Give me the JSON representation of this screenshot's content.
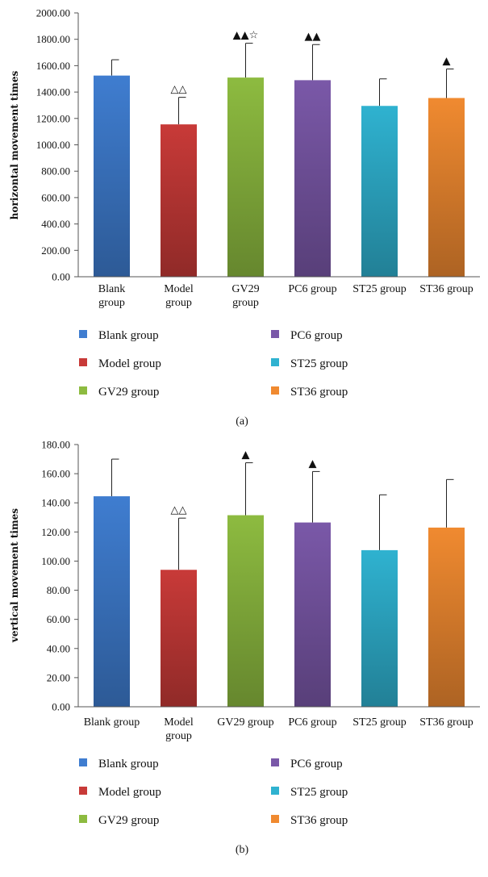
{
  "colors": {
    "Blank group": "#3f7dd0",
    "Model group": "#c83a38",
    "GV29 group": "#8dbb40",
    "PC6 group": "#7a58a8",
    "ST25 group": "#2fb2d0",
    "ST36 group": "#f08a30"
  },
  "chart_data": [
    {
      "type": "bar",
      "caption": "(a)",
      "ylabel": "horizontal movement times",
      "ylim": [
        0,
        2000
      ],
      "ytick_labels": [
        "0.00",
        "200.00",
        "400.00",
        "600.00",
        "800.00",
        "1000.00",
        "1200.00",
        "1400.00",
        "1600.00",
        "1800.00",
        "2000.00"
      ],
      "ytick_values": [
        0,
        200,
        400,
        600,
        800,
        1000,
        1200,
        1400,
        1600,
        1800,
        2000
      ],
      "categories": [
        {
          "name": "Blank group",
          "lines": [
            "Blank",
            "group"
          ]
        },
        {
          "name": "Model group",
          "lines": [
            "Model",
            "group"
          ]
        },
        {
          "name": "GV29 group",
          "lines": [
            "GV29",
            "group"
          ]
        },
        {
          "name": "PC6 group",
          "lines": [
            "PC6 group"
          ]
        },
        {
          "name": "ST25 group",
          "lines": [
            "ST25 group"
          ]
        },
        {
          "name": "ST36 group",
          "lines": [
            "ST36 group"
          ]
        }
      ],
      "values": [
        1525,
        1155,
        1510,
        1490,
        1295,
        1355
      ],
      "errors": [
        120,
        205,
        260,
        270,
        205,
        220
      ],
      "markers": [
        "",
        "△△",
        "▲▲☆",
        "▲▲",
        "",
        "▲"
      ],
      "legend": [
        "Blank group",
        "Model group",
        "GV29 group",
        "PC6 group",
        "ST25 group",
        "ST36 group"
      ]
    },
    {
      "type": "bar",
      "caption": "(b)",
      "ylabel": "vertical movement times",
      "ylim": [
        0,
        180
      ],
      "ytick_labels": [
        "0.00",
        "20.00",
        "40.00",
        "60.00",
        "80.00",
        "100.00",
        "120.00",
        "140.00",
        "160.00",
        "180.00"
      ],
      "ytick_values": [
        0,
        20,
        40,
        60,
        80,
        100,
        120,
        140,
        160,
        180
      ],
      "categories": [
        {
          "name": "Blank group",
          "lines": [
            "Blank group"
          ]
        },
        {
          "name": "Model group",
          "lines": [
            "Model",
            "group"
          ]
        },
        {
          "name": "GV29 group",
          "lines": [
            "GV29 group"
          ]
        },
        {
          "name": "PC6 group",
          "lines": [
            "PC6 group"
          ]
        },
        {
          "name": "ST25 group",
          "lines": [
            "ST25 group"
          ]
        },
        {
          "name": "ST36 group",
          "lines": [
            "ST36 group"
          ]
        }
      ],
      "values": [
        144.5,
        94,
        131.5,
        126.5,
        107.5,
        123
      ],
      "errors": [
        25.5,
        35.5,
        36,
        35,
        38,
        33
      ],
      "markers": [
        "",
        "△△",
        "▲",
        "▲",
        "",
        ""
      ],
      "legend": [
        "Blank group",
        "Model group",
        "GV29 group",
        "PC6 group",
        "ST25 group",
        "ST36 group"
      ]
    }
  ]
}
